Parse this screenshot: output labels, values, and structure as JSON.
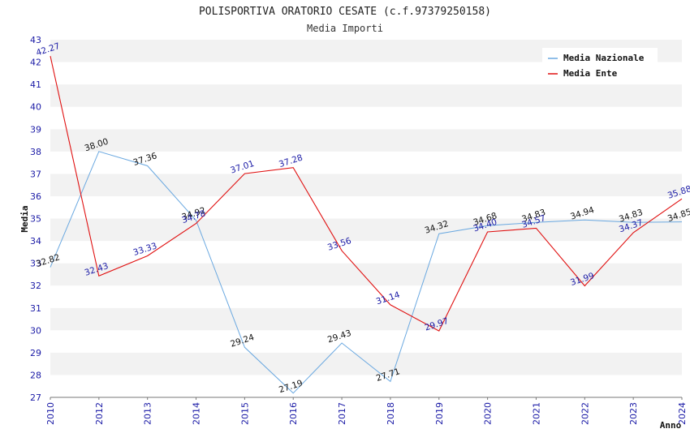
{
  "chart_data": {
    "type": "line",
    "title": "POLISPORTIVA ORATORIO CESATE (c.f.97379250158)",
    "subtitle": "Media Importi",
    "xlabel": "Anno",
    "ylabel": "Media",
    "ylim": [
      27,
      43
    ],
    "yticks": [
      "27",
      "28",
      "29",
      "30",
      "31",
      "32",
      "33",
      "34",
      "35",
      "36",
      "37",
      "38",
      "39",
      "40",
      "41",
      "42",
      "43"
    ],
    "categories": [
      "2010",
      "2012",
      "2013",
      "2014",
      "2015",
      "2016",
      "2017",
      "2018",
      "2019",
      "2020",
      "2021",
      "2022",
      "2023",
      "2024"
    ],
    "grid": true,
    "legend_position": "top-right",
    "series": [
      {
        "name": "Media Nazionale",
        "color": "#6aa8e0",
        "label_color": "#111111",
        "values": [
          32.82,
          38.0,
          37.36,
          34.92,
          29.24,
          27.19,
          29.43,
          27.71,
          34.32,
          34.68,
          34.83,
          34.94,
          34.83,
          34.85
        ],
        "labels": [
          "32.82",
          "38.00",
          "37.36",
          "34.92",
          "29.24",
          "27.19",
          "29.43",
          "27.71",
          "34.32",
          "34.68",
          "34.83",
          "34.94",
          "34.83",
          "34.85"
        ]
      },
      {
        "name": "Media Ente",
        "color": "#e01010",
        "label_color": "#1a1aa6",
        "values": [
          42.27,
          32.43,
          33.33,
          34.78,
          37.01,
          37.28,
          33.56,
          31.14,
          29.97,
          34.4,
          34.57,
          31.99,
          34.37,
          35.88
        ],
        "labels": [
          "42.27",
          "32.43",
          "33.33",
          "34.78",
          "37.01",
          "37.28",
          "33.56",
          "31.14",
          "29.97",
          "34.40",
          "34.57",
          "31.99",
          "34.37",
          "35.88"
        ]
      }
    ]
  }
}
